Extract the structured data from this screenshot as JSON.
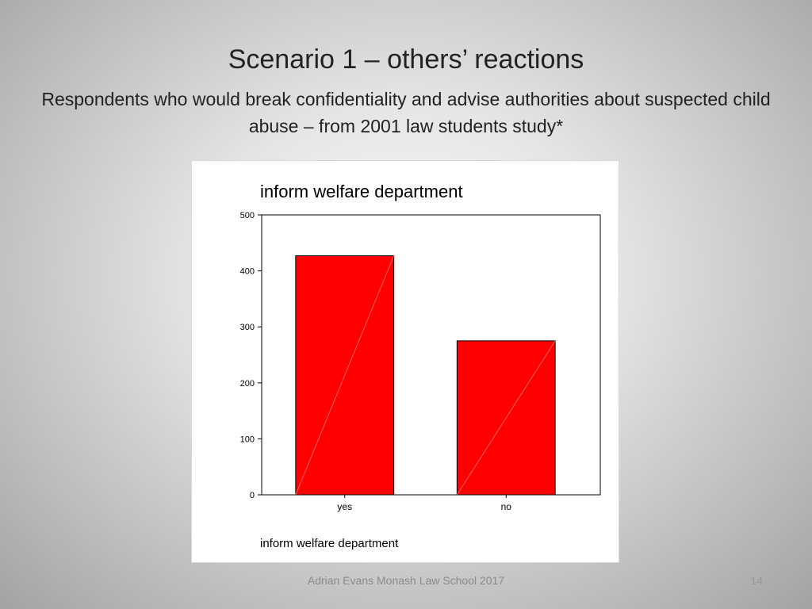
{
  "slide": {
    "title": "Scenario 1 – others’ reactions",
    "subtitle": "Respondents who would break confidentiality and advise authorities about suspected child abuse – from 2001 law students study*",
    "footer": "Adrian Evans   Monash Law School 2017",
    "page_number": "14"
  },
  "chart_data": {
    "type": "bar",
    "title": "inform welfare department",
    "xlabel": "inform welfare department",
    "ylabel": "",
    "categories": [
      "yes",
      "no"
    ],
    "values": [
      427,
      275
    ],
    "ylim": [
      0,
      500
    ],
    "yticks": [
      0,
      100,
      200,
      300,
      400,
      500
    ],
    "bar_color": "#ff0000",
    "grid": false
  }
}
